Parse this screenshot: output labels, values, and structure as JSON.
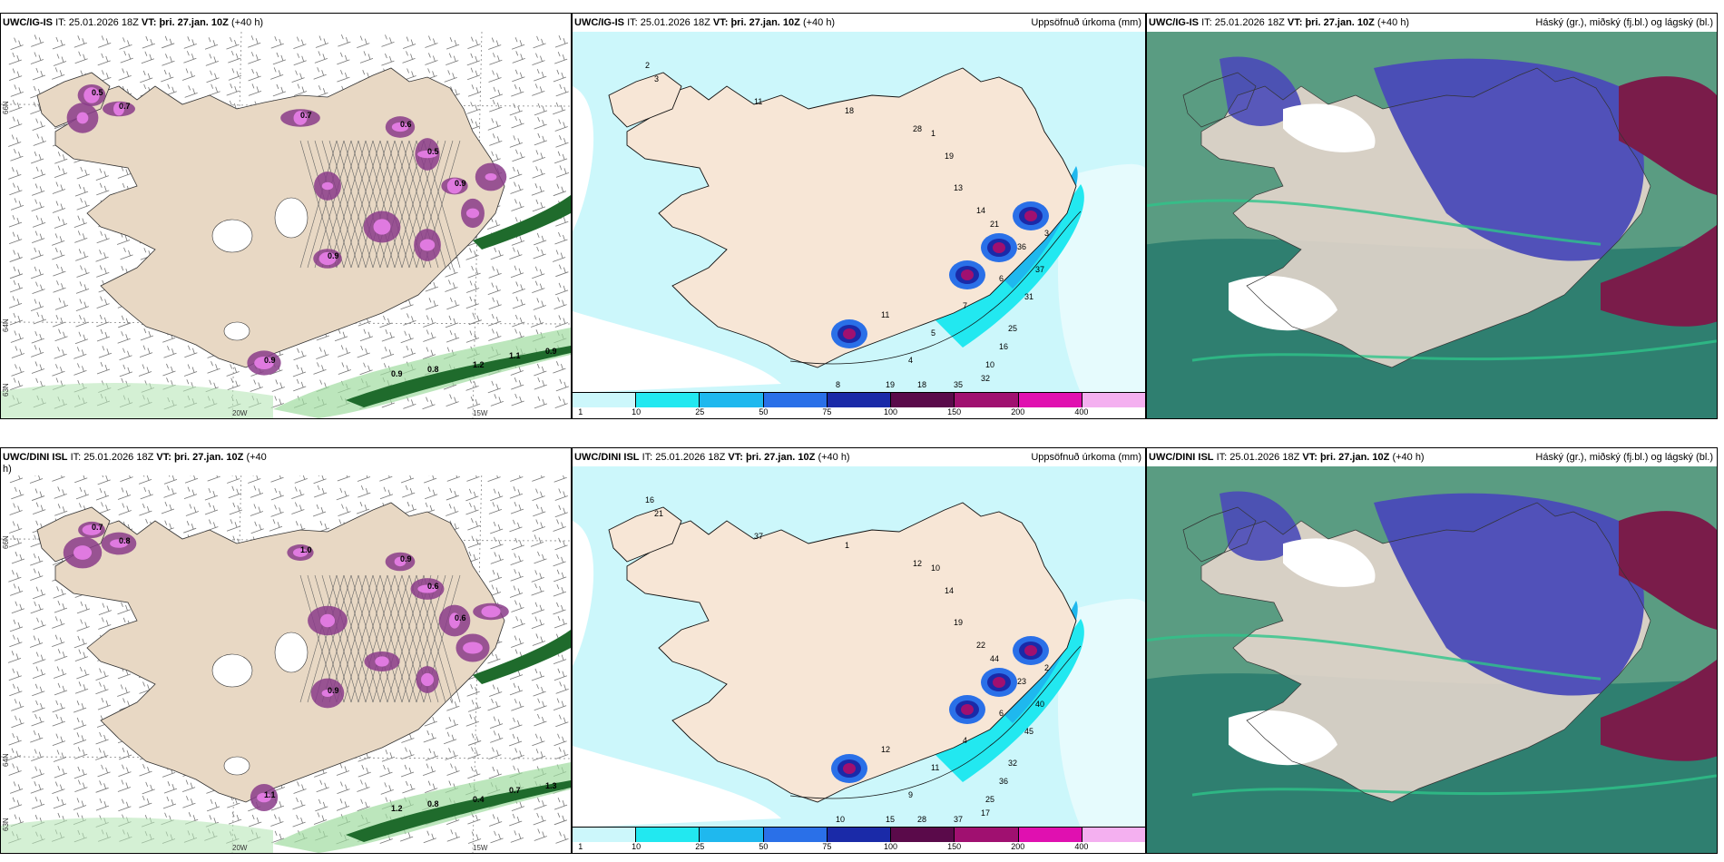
{
  "panels": [
    {
      "id": "p1",
      "model": "UWC/IG-IS",
      "it_label": "IT:",
      "it_value": "25.01.2026 18Z",
      "vt_label": "VT:",
      "vt_value": "þri. 27.jan. 10Z",
      "lead": "(+40 h)",
      "right_label": "",
      "type": "precip_type",
      "values": [
        "0.5",
        "0.7",
        "0.7",
        "0.6",
        "0.5",
        "0.9",
        "0.9",
        "0.9",
        "0.9",
        "0.8",
        "1.2",
        "1.1",
        "0.9"
      ],
      "axis": [
        "66N",
        "64N",
        "63N",
        "20W",
        "15W"
      ]
    },
    {
      "id": "p2",
      "model": "UWC/IG-IS",
      "it_label": "IT:",
      "it_value": "25.01.2026 18Z",
      "vt_label": "VT:",
      "vt_value": "þri. 27.jan. 10Z",
      "lead": "(+40 h)",
      "right_label": "Uppsöfnuð úrkoma (mm)",
      "type": "accum",
      "values": [
        "2",
        "3",
        "11",
        "18",
        "28",
        "1",
        "19",
        "13",
        "14",
        "21",
        "36",
        "37",
        "31",
        "25",
        "16",
        "10",
        "32",
        "35",
        "18",
        "19",
        "11",
        "8",
        "4",
        "5",
        "7",
        "6",
        "3"
      ],
      "colorbar": {
        "colors": [
          "#ccf7fb",
          "#22e8f0",
          "#1fb8ee",
          "#2a70e8",
          "#1a2aa8",
          "#5a0a4a",
          "#a01070",
          "#e010b0",
          "#f4b0f0"
        ],
        "ticks": [
          "1",
          "10",
          "25",
          "50",
          "75",
          "100",
          "150",
          "200",
          "400"
        ]
      }
    },
    {
      "id": "p3",
      "model": "UWC/IG-IS",
      "it_label": "IT:",
      "it_value": "25.01.2026 18Z",
      "vt_label": "VT:",
      "vt_value": "þri. 27.jan. 10Z",
      "lead": "(+40 h)",
      "right_label": "Háský (gr.), miðský (fj.bl.) og lágský (bl.)",
      "type": "clouds"
    },
    {
      "id": "p4",
      "model": "UWC/DINI ISL",
      "it_label": "IT:",
      "it_value": "25.01.2026 18Z",
      "vt_label": "VT:",
      "vt_value": "þri. 27.jan. 10Z",
      "lead": "(+40",
      "lead2": "h)",
      "right_label": "",
      "type": "precip_type",
      "values": [
        "0.7",
        "0.8",
        "1.0",
        "0.9",
        "0.6",
        "0.6",
        "0.9",
        "1.1",
        "1.2",
        "0.8",
        "0.4",
        "0.7",
        "1.3"
      ],
      "axis": [
        "66N",
        "64N",
        "63N",
        "20W",
        "15W"
      ]
    },
    {
      "id": "p5",
      "model": "UWC/DINI ISL",
      "it_label": "IT:",
      "it_value": "25.01.2026 18Z",
      "vt_label": "VT:",
      "vt_value": "þri. 27.jan. 10Z",
      "lead": "(+40 h)",
      "right_label": "Uppsöfnuð úrkoma (mm)",
      "type": "accum",
      "values": [
        "16",
        "21",
        "37",
        "1",
        "12",
        "10",
        "14",
        "19",
        "22",
        "44",
        "23",
        "40",
        "45",
        "32",
        "36",
        "25",
        "17",
        "37",
        "28",
        "15",
        "12",
        "10",
        "9",
        "11",
        "4",
        "6",
        "2"
      ],
      "colorbar": {
        "colors": [
          "#ccf7fb",
          "#22e8f0",
          "#1fb8ee",
          "#2a70e8",
          "#1a2aa8",
          "#5a0a4a",
          "#a01070",
          "#e010b0",
          "#f4b0f0"
        ],
        "ticks": [
          "1",
          "10",
          "25",
          "50",
          "75",
          "100",
          "150",
          "200",
          "400"
        ]
      }
    },
    {
      "id": "p6",
      "model": "UWC/DINI ISL",
      "it_label": "IT:",
      "it_value": "25.01.2026 18Z",
      "vt_label": "VT:",
      "vt_value": "þri. 27.jan. 10Z",
      "lead": "(+40 h)",
      "right_label": "Háský (gr.), miðský (fj.bl.) og lágský (bl.)",
      "type": "clouds"
    }
  ]
}
